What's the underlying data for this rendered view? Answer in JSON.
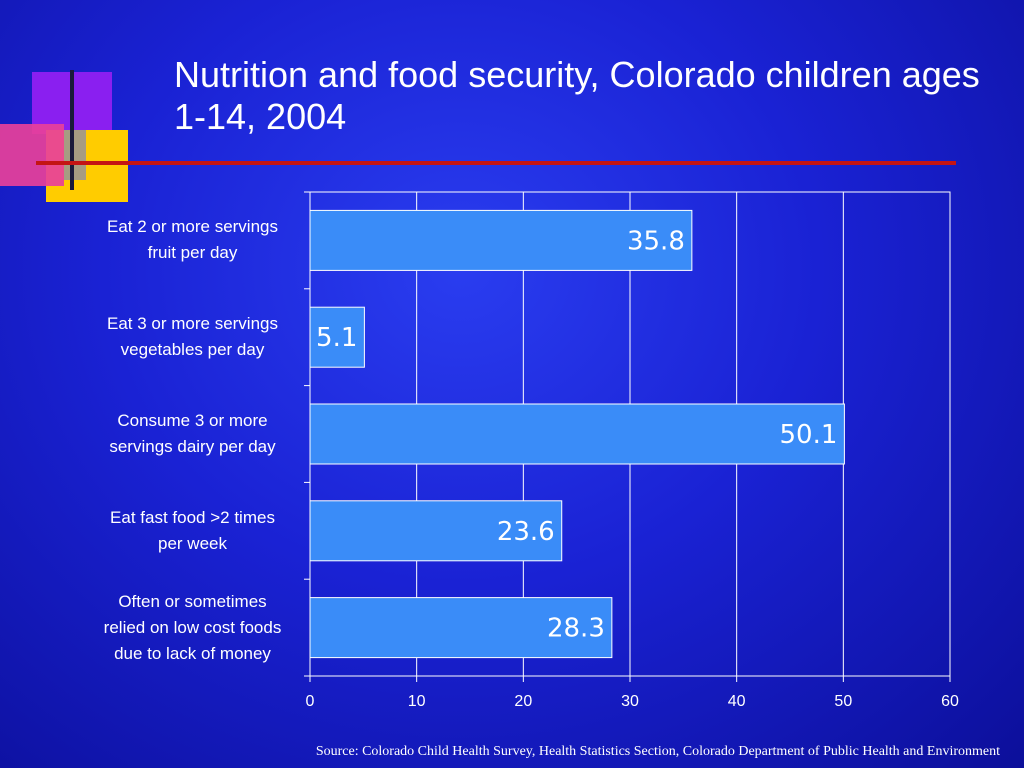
{
  "title": "Nutrition and food security, Colorado children ages 1-14, 2004",
  "source": "Source: Colorado Child Health Survey, Health Statistics Section, Colorado Department of Public Health and Environment",
  "colors": {
    "bar_fill": "#3a8cf8",
    "bar_stroke": "#ffffff",
    "rule": "#c41414",
    "background": "#1a22d4",
    "text": "#ffffff"
  },
  "chart_data": {
    "type": "bar",
    "orientation": "horizontal",
    "categories": [
      "Eat 2 or more servings fruit per day",
      "Eat 3 or more servings vegetables per day",
      "Consume 3 or more servings dairy per day",
      "Eat fast food >2 times per week",
      "Often or sometimes relied on low cost foods due to lack of money"
    ],
    "category_lines": [
      [
        "Eat 2 or more servings",
        "fruit per day"
      ],
      [
        "Eat 3 or more servings",
        "vegetables per day"
      ],
      [
        "Consume 3 or more",
        "servings dairy per day"
      ],
      [
        "Eat fast food >2 times",
        "per week"
      ],
      [
        "Often or sometimes",
        "relied on low cost foods",
        "due to lack of money"
      ]
    ],
    "values": [
      35.8,
      5.1,
      50.1,
      23.6,
      28.3
    ],
    "data_labels": [
      "35.8",
      "5.1",
      "50.1",
      "23.6",
      "28.3"
    ],
    "xlim": [
      0,
      60
    ],
    "xticks": [
      0,
      10,
      20,
      30,
      40,
      50,
      60
    ],
    "grid": true,
    "legend": "none"
  }
}
